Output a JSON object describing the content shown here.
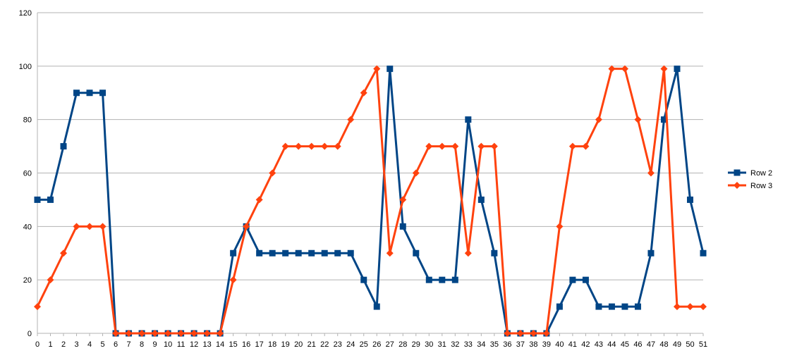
{
  "chart_data": {
    "type": "line",
    "title": "",
    "xlabel": "",
    "ylabel": "",
    "x": [
      0,
      1,
      2,
      3,
      4,
      5,
      6,
      7,
      8,
      9,
      10,
      11,
      12,
      13,
      14,
      15,
      16,
      17,
      18,
      19,
      20,
      21,
      22,
      23,
      24,
      25,
      26,
      27,
      28,
      29,
      30,
      31,
      32,
      33,
      34,
      35,
      36,
      37,
      38,
      39,
      40,
      41,
      42,
      43,
      44,
      45,
      46,
      47,
      48,
      49,
      50,
      51
    ],
    "xlim": [
      0,
      51
    ],
    "ylim": [
      0,
      120
    ],
    "yticks": [
      0,
      20,
      40,
      60,
      80,
      100,
      120
    ],
    "grid": true,
    "legend_position": "right",
    "series": [
      {
        "name": "Row 2",
        "color": "#004586",
        "marker": "square",
        "values": [
          50,
          50,
          70,
          90,
          90,
          90,
          0,
          0,
          0,
          0,
          0,
          0,
          0,
          0,
          0,
          30,
          40,
          30,
          30,
          30,
          30,
          30,
          30,
          30,
          30,
          20,
          10,
          99,
          40,
          30,
          20,
          20,
          20,
          80,
          50,
          30,
          0,
          0,
          0,
          0,
          10,
          20,
          20,
          10,
          10,
          10,
          10,
          30,
          80,
          99,
          50,
          30
        ]
      },
      {
        "name": "Row 3",
        "color": "#ff420e",
        "marker": "diamond",
        "values": [
          10,
          20,
          30,
          40,
          40,
          40,
          0,
          0,
          0,
          0,
          0,
          0,
          0,
          0,
          0,
          20,
          40,
          50,
          60,
          70,
          70,
          70,
          70,
          70,
          80,
          90,
          99,
          30,
          50,
          60,
          70,
          70,
          70,
          30,
          70,
          70,
          0,
          0,
          0,
          0,
          40,
          70,
          70,
          80,
          99,
          99,
          80,
          60,
          99,
          10,
          10,
          10
        ]
      }
    ]
  }
}
